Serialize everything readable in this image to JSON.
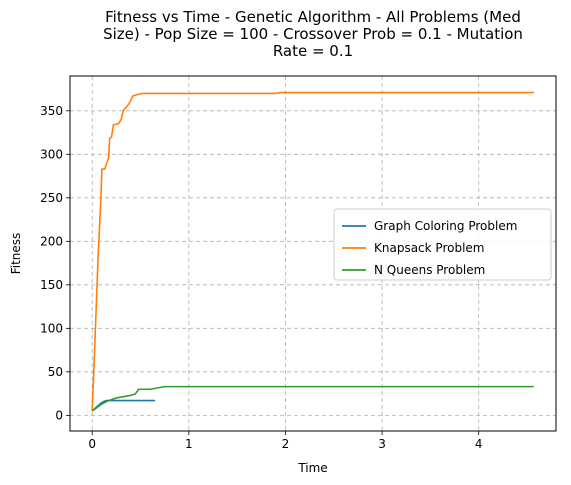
{
  "chart_data": {
    "type": "line",
    "title_lines": [
      "Fitness vs Time - Genetic Algorithm - All Problems (Med",
      "Size) - Pop Size = 100 - Crossover Prob = 0.1 - Mutation",
      "Rate = 0.1"
    ],
    "xlabel": "Time",
    "ylabel": "Fitness",
    "xlim": [
      -0.23,
      4.8
    ],
    "ylim": [
      -18,
      390
    ],
    "xticks": [
      0,
      1,
      2,
      3,
      4
    ],
    "yticks": [
      0,
      50,
      100,
      150,
      200,
      250,
      300,
      350
    ],
    "grid": true,
    "legend_position": "center-right",
    "series": [
      {
        "name": "Graph Coloring Problem",
        "color": "#1f77b4",
        "points": [
          [
            0,
            5
          ],
          [
            0.03,
            8
          ],
          [
            0.06,
            11
          ],
          [
            0.09,
            14
          ],
          [
            0.12,
            16
          ],
          [
            0.15,
            17
          ],
          [
            0.2,
            17
          ],
          [
            0.3,
            17
          ],
          [
            0.4,
            17
          ],
          [
            0.5,
            17
          ],
          [
            0.6,
            17
          ],
          [
            0.65,
            17
          ]
        ]
      },
      {
        "name": "Knapsack Problem",
        "color": "#ff7f0e",
        "points": [
          [
            0,
            5
          ],
          [
            0.03,
            90
          ],
          [
            0.06,
            180
          ],
          [
            0.09,
            250
          ],
          [
            0.1,
            283
          ],
          [
            0.13,
            283
          ],
          [
            0.15,
            290
          ],
          [
            0.17,
            296
          ],
          [
            0.18,
            318
          ],
          [
            0.2,
            320
          ],
          [
            0.22,
            334
          ],
          [
            0.27,
            335
          ],
          [
            0.3,
            340
          ],
          [
            0.32,
            350
          ],
          [
            0.35,
            354
          ],
          [
            0.38,
            358
          ],
          [
            0.4,
            362
          ],
          [
            0.42,
            367
          ],
          [
            0.45,
            368
          ],
          [
            0.48,
            369
          ],
          [
            0.52,
            370
          ],
          [
            1.0,
            370
          ],
          [
            1.5,
            370
          ],
          [
            1.9,
            370
          ],
          [
            1.95,
            371
          ],
          [
            2.5,
            371
          ],
          [
            3.0,
            371
          ],
          [
            3.5,
            371
          ],
          [
            4.0,
            371
          ],
          [
            4.57,
            371
          ]
        ]
      },
      {
        "name": "N Queens Problem",
        "color": "#2ca02c",
        "points": [
          [
            0,
            5
          ],
          [
            0.05,
            9
          ],
          [
            0.1,
            13
          ],
          [
            0.15,
            16
          ],
          [
            0.2,
            18
          ],
          [
            0.25,
            20
          ],
          [
            0.3,
            21
          ],
          [
            0.35,
            22
          ],
          [
            0.4,
            23
          ],
          [
            0.45,
            25
          ],
          [
            0.48,
            30
          ],
          [
            0.55,
            30
          ],
          [
            0.6,
            30
          ],
          [
            0.65,
            31
          ],
          [
            0.7,
            32
          ],
          [
            0.75,
            33
          ],
          [
            1.0,
            33
          ],
          [
            2.0,
            33
          ],
          [
            3.0,
            33
          ],
          [
            4.0,
            33
          ],
          [
            4.57,
            33
          ]
        ]
      }
    ]
  }
}
